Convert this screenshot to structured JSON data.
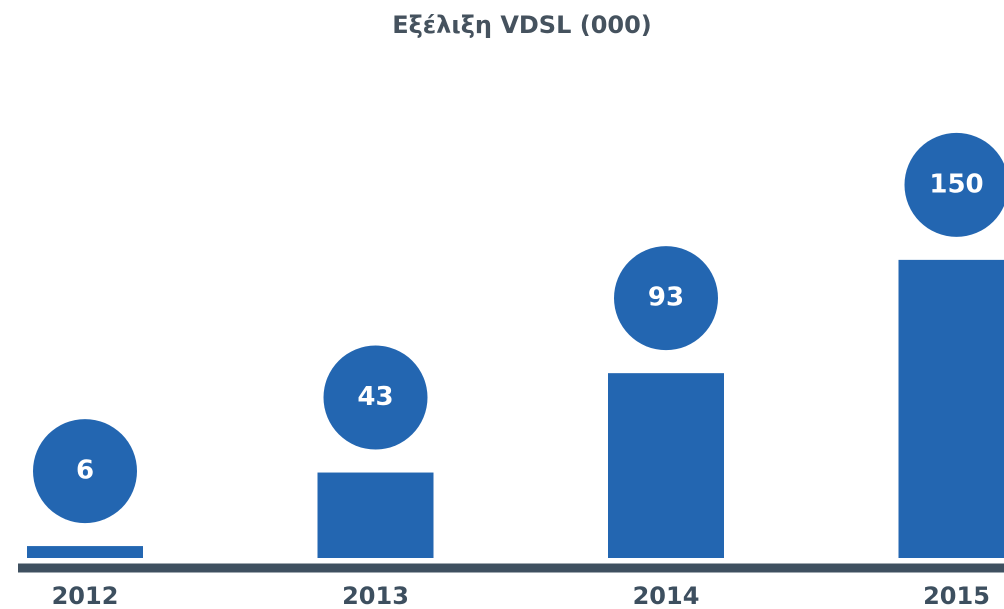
{
  "chart_data": {
    "type": "bar",
    "title": "Εξέλιξη VDSL (000)",
    "categories": [
      "2012",
      "2013",
      "2014",
      "2015"
    ],
    "values": [
      6,
      43,
      93,
      150
    ],
    "color": "#2366b1",
    "ylim": [
      0,
      160
    ]
  }
}
